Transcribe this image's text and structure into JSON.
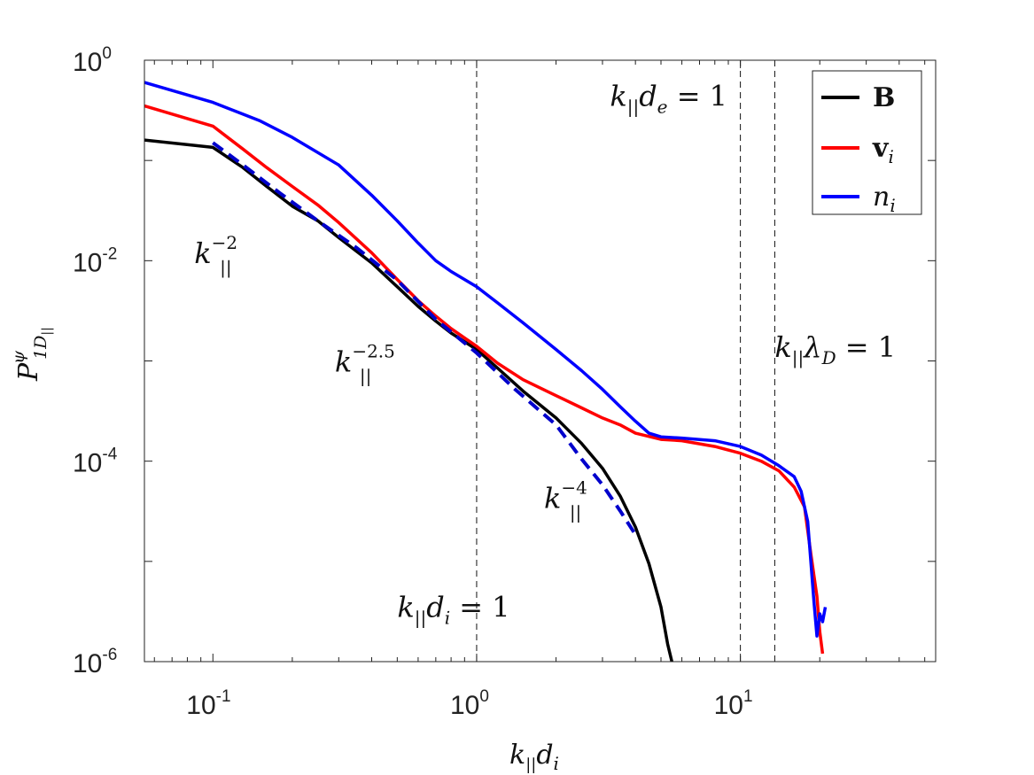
{
  "chart_data": {
    "type": "line",
    "xscale": "log",
    "yscale": "log",
    "xlim": [
      0.055,
      55
    ],
    "ylim": [
      1e-06,
      1
    ],
    "xticks": [
      {
        "base": "10",
        "exp": "-1",
        "value": 0.1
      },
      {
        "base": "10",
        "exp": "0",
        "value": 1
      },
      {
        "base": "10",
        "exp": "1",
        "value": 10
      }
    ],
    "yticks": [
      {
        "base": "10",
        "exp": "-6",
        "value": 1e-06
      },
      {
        "base": "10",
        "exp": "-4",
        "value": 0.0001
      },
      {
        "base": "10",
        "exp": "-2",
        "value": 0.01
      },
      {
        "base": "10",
        "exp": "0",
        "value": 1
      }
    ],
    "xlabel": {
      "k": "k",
      "sub": "||",
      "d": "d",
      "dsub": "i"
    },
    "ylabel": {
      "P": "P",
      "sup": "ψ",
      "sub": "1D",
      "subsub": "||"
    },
    "legend": {
      "position": "top-right",
      "entries": [
        {
          "label": "B",
          "sub": "",
          "color": "#000000"
        },
        {
          "label": "v",
          "sub": "i",
          "color": "#ff0000"
        },
        {
          "label": "n",
          "sub": "i",
          "color": "#0000ff"
        }
      ]
    },
    "series": [
      {
        "name": "B",
        "color": "#000000",
        "points": [
          [
            0.055,
            0.16
          ],
          [
            0.1,
            0.135
          ],
          [
            0.13,
            0.085
          ],
          [
            0.16,
            0.055
          ],
          [
            0.2,
            0.035
          ],
          [
            0.25,
            0.025
          ],
          [
            0.3,
            0.017
          ],
          [
            0.4,
            0.0095
          ],
          [
            0.5,
            0.0055
          ],
          [
            0.6,
            0.0035
          ],
          [
            0.7,
            0.0025
          ],
          [
            0.8,
            0.0019
          ],
          [
            1.0,
            0.0013
          ],
          [
            1.2,
            0.00085
          ],
          [
            1.5,
            0.0005
          ],
          [
            2.0,
            0.00027
          ],
          [
            2.5,
            0.00015
          ],
          [
            3.0,
            8.5e-05
          ],
          [
            3.5,
            4.5e-05
          ],
          [
            4.0,
            2.2e-05
          ],
          [
            4.5,
            9.5e-06
          ],
          [
            5.0,
            3.5e-06
          ],
          [
            5.3,
            1.5e-06
          ],
          [
            5.5,
            1e-06
          ]
        ]
      },
      {
        "name": "v_i",
        "color": "#ff0000",
        "points": [
          [
            0.055,
            0.35
          ],
          [
            0.1,
            0.22
          ],
          [
            0.13,
            0.13
          ],
          [
            0.16,
            0.085
          ],
          [
            0.2,
            0.055
          ],
          [
            0.25,
            0.036
          ],
          [
            0.3,
            0.024
          ],
          [
            0.4,
            0.012
          ],
          [
            0.5,
            0.0065
          ],
          [
            0.6,
            0.004
          ],
          [
            0.7,
            0.0028
          ],
          [
            0.8,
            0.0021
          ],
          [
            1.0,
            0.0014
          ],
          [
            1.2,
            0.00095
          ],
          [
            1.5,
            0.00065
          ],
          [
            2.0,
            0.00045
          ],
          [
            2.5,
            0.00034
          ],
          [
            3.0,
            0.00027
          ],
          [
            3.5,
            0.00023
          ],
          [
            4.0,
            0.00019
          ],
          [
            5.0,
            0.000165
          ],
          [
            6.0,
            0.00016
          ],
          [
            8.0,
            0.00014
          ],
          [
            10.0,
            0.00012
          ],
          [
            12.0,
            0.0001
          ],
          [
            14.0,
            8e-05
          ],
          [
            16.0,
            5.5e-05
          ],
          [
            17.5,
            3.5e-05
          ],
          [
            18.5,
            1.2e-05
          ],
          [
            19.5,
            4.5e-06
          ],
          [
            20.0,
            2e-06
          ],
          [
            20.5,
            1.2e-06
          ]
        ]
      },
      {
        "name": "n_i",
        "color": "#0000ff",
        "points": [
          [
            0.055,
            0.6
          ],
          [
            0.1,
            0.38
          ],
          [
            0.15,
            0.25
          ],
          [
            0.2,
            0.17
          ],
          [
            0.3,
            0.09
          ],
          [
            0.4,
            0.045
          ],
          [
            0.5,
            0.025
          ],
          [
            0.6,
            0.015
          ],
          [
            0.7,
            0.01
          ],
          [
            0.8,
            0.0078
          ],
          [
            1.0,
            0.0055
          ],
          [
            1.2,
            0.0038
          ],
          [
            1.5,
            0.0024
          ],
          [
            2.0,
            0.0013
          ],
          [
            2.5,
            0.0008
          ],
          [
            3.0,
            0.00052
          ],
          [
            3.5,
            0.00035
          ],
          [
            4.0,
            0.00025
          ],
          [
            4.5,
            0.00019
          ],
          [
            5.0,
            0.000175
          ],
          [
            6.0,
            0.00017
          ],
          [
            8.0,
            0.00016
          ],
          [
            10.0,
            0.00014
          ],
          [
            12.0,
            0.000115
          ],
          [
            14.0,
            9e-05
          ],
          [
            16.0,
            7e-05
          ],
          [
            17.0,
            5e-05
          ],
          [
            18.0,
            2.5e-05
          ],
          [
            18.5,
            1e-05
          ],
          [
            19.0,
            4e-06
          ],
          [
            19.5,
            1.8e-06
          ],
          [
            20.0,
            3e-06
          ],
          [
            20.5,
            2.5e-06
          ],
          [
            21.0,
            3.5e-06
          ]
        ]
      },
      {
        "name": "fit",
        "color": "#0000cc",
        "dashed": true,
        "points": [
          [
            0.1,
            0.15
          ],
          [
            0.13,
            0.09
          ],
          [
            0.18,
            0.047
          ],
          [
            0.25,
            0.025
          ],
          [
            0.35,
            0.0135
          ],
          [
            0.5,
            0.0064
          ],
          [
            0.7,
            0.0026
          ],
          [
            1.0,
            0.0012
          ],
          [
            1.4,
            0.00052
          ],
          [
            2.0,
            0.00023
          ],
          [
            2.5,
            0.000105
          ],
          [
            3.0,
            5.8e-05
          ],
          [
            3.5,
            3.2e-05
          ],
          [
            4.0,
            1.85e-05
          ]
        ]
      }
    ],
    "vlines": [
      1,
      10,
      13.5
    ],
    "annotations": [
      {
        "id": "slope-2",
        "k": "k",
        "sub": "||",
        "sup": "−2",
        "x": 0.085,
        "y": 0.0095
      },
      {
        "id": "slope-25",
        "k": "k",
        "sub": "||",
        "sup": "−2.5",
        "x": 0.29,
        "y": 0.00078
      },
      {
        "id": "slope-4",
        "k": "k",
        "sub": "||",
        "sup": "−4",
        "x": 1.8,
        "y": 3.4e-05
      },
      {
        "id": "kd-i",
        "k": "k",
        "sub": "||",
        "rest": "d",
        "restsub": "i",
        "eq": " = 1",
        "x": 0.5,
        "y": 2.8e-06
      },
      {
        "id": "kd-e",
        "k": "k",
        "sub": "||",
        "rest": "d",
        "restsub": "e",
        "eq": " = 1",
        "x": 3.2,
        "y": 0.35
      },
      {
        "id": "klambda",
        "k": "k",
        "sub": "||",
        "rest": "λ",
        "restsub": "D",
        "eq": " = 1",
        "x": 13.5,
        "y": 0.0011
      }
    ]
  }
}
